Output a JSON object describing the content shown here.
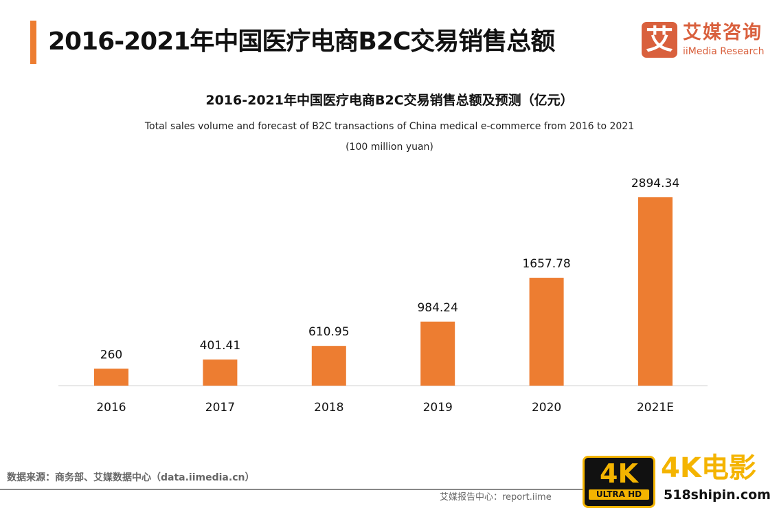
{
  "header": {
    "title": "2016-2021年中国医疗电商B2C交易销售总额"
  },
  "logo": {
    "icon_char": "艾",
    "cn": "艾媒咨询",
    "en": "iiMedia Research"
  },
  "chart_data": {
    "type": "bar",
    "title": "2016-2021年中国医疗电商B2C交易销售总额及预测（亿元）",
    "subtitle": "Total sales volume and forecast of B2C transactions of China medical e-commerce from 2016 to 2021",
    "unit": "(100 million yuan)",
    "categories": [
      "2016",
      "2017",
      "2018",
      "2019",
      "2020",
      "2021E"
    ],
    "values": [
      260,
      401.41,
      610.95,
      984.24,
      1657.78,
      2894.34
    ],
    "labels": [
      "260",
      "401.41",
      "610.95",
      "984.24",
      "1657.78",
      "2894.34"
    ],
    "ylim": [
      0,
      3000
    ],
    "grid": false,
    "color": "#ed7d31"
  },
  "footer": {
    "source": "数据来源：商务部、艾媒数据中心（data.iimedia.cn）",
    "report": "艾媒报告中心：report.iime"
  },
  "watermark": {
    "badge_big": "4K",
    "badge_small": "ULTRA HD",
    "text1": "4K电影",
    "text2": "518shipin.com"
  }
}
